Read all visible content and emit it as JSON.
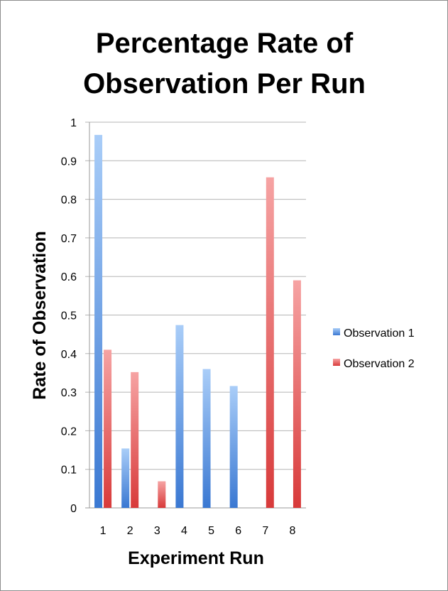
{
  "chart_data": {
    "type": "bar",
    "title_lines": [
      "Percentage Rate of",
      "Observation Per Run"
    ],
    "xlabel": "Experiment Run",
    "ylabel": "Rate of Observation",
    "categories": [
      "1",
      "2",
      "3",
      "4",
      "5",
      "6",
      "7",
      "8"
    ],
    "ylim": [
      0,
      1
    ],
    "yticks": [
      "0",
      "0.1",
      "0.2",
      "0.3",
      "0.4",
      "0.5",
      "0.6",
      "0.7",
      "0.8",
      "0.9",
      "1"
    ],
    "grid": true,
    "legend_position": "right",
    "series": [
      {
        "name": "Observation 1",
        "color": "#3f7fd6",
        "values": [
          0.967,
          0.154,
          0,
          0.474,
          0.36,
          0.316,
          0,
          0
        ]
      },
      {
        "name": "Observation 2",
        "color": "#e04848",
        "values": [
          0.41,
          0.352,
          0.069,
          0,
          0,
          0,
          0.857,
          0.59
        ]
      }
    ]
  }
}
